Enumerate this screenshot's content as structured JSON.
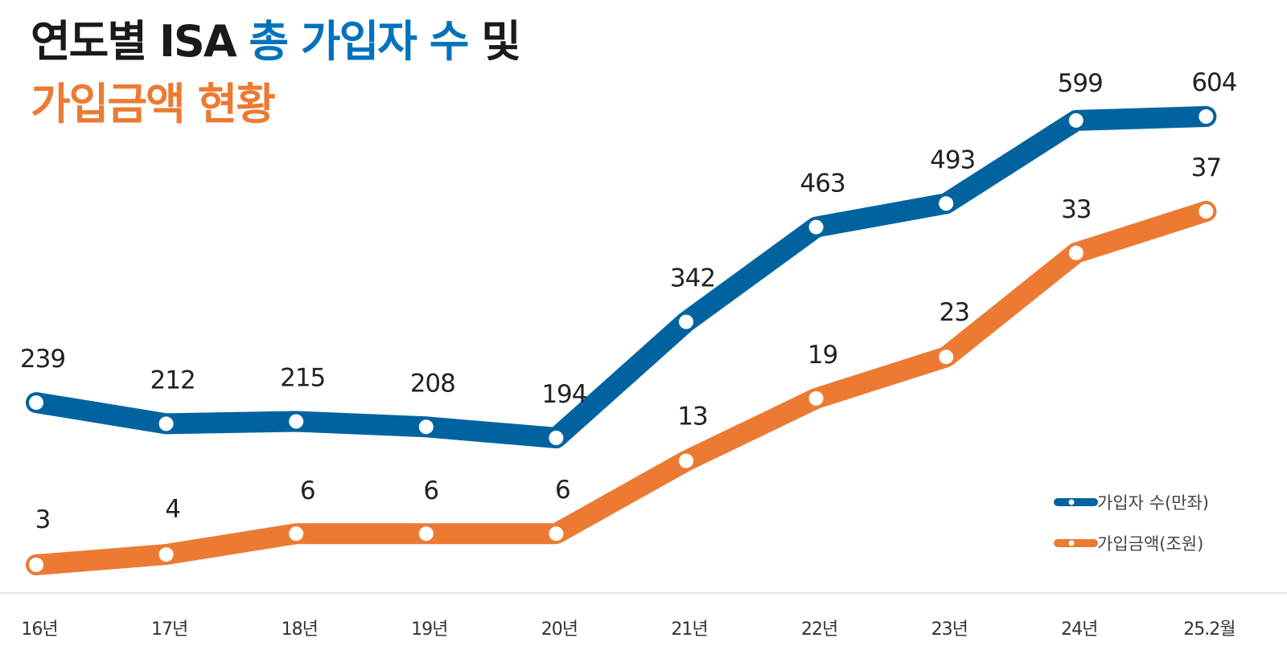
{
  "title": {
    "line1": [
      {
        "text": "연도별 ISA ",
        "color": "#1a1a1a"
      },
      {
        "text": "총 가입자 수",
        "color": "#0072bc"
      },
      {
        "text": " 및",
        "color": "#1a1a1a"
      }
    ],
    "line2": [
      {
        "text": "가입금액 현황",
        "color": "#ec7a33"
      }
    ]
  },
  "colors": {
    "blue": "#00639f",
    "orange": "#ec7a33",
    "axis": "#cccccc"
  },
  "chart_data": {
    "type": "line",
    "categories": [
      "16년",
      "17년",
      "18년",
      "19년",
      "20년",
      "21년",
      "22년",
      "23년",
      "24년",
      "25.2월"
    ],
    "series": [
      {
        "name": "가입자 수(만좌)",
        "color": "#00639f",
        "values": [
          239,
          212,
          215,
          208,
          194,
          342,
          463,
          493,
          599,
          604
        ]
      },
      {
        "name": "가입금액(조원)",
        "color": "#ec7a33",
        "values": [
          3,
          4,
          6,
          6,
          6,
          13,
          19,
          23,
          33,
          37
        ]
      }
    ],
    "grid": false,
    "legend": "bottom-right"
  }
}
